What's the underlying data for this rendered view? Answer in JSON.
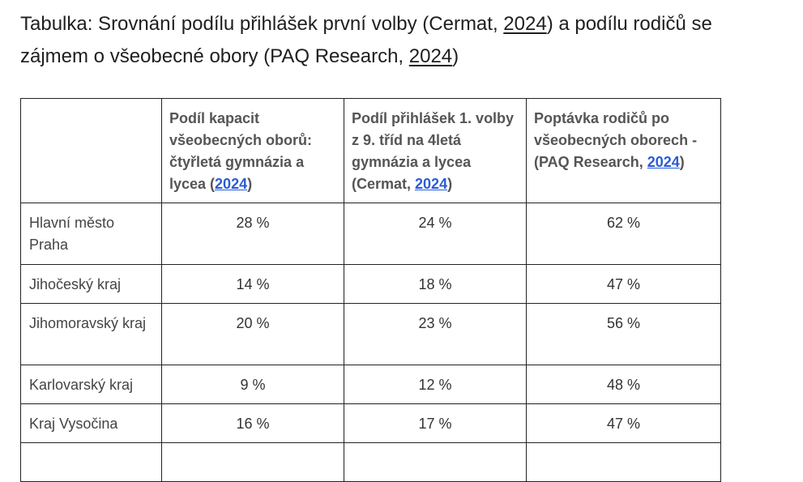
{
  "title": {
    "line1_before": "Tabulka: Srovnání podílu přihlášek první volby (Cermat, ",
    "line1_link": "2024",
    "line1_after": ") a podílu rodičů se",
    "line2_before": "zájmem o všeobecné obory (PAQ Research, ",
    "line2_link": "2024",
    "line2_after": ")"
  },
  "table": {
    "headers": [
      {
        "text": "",
        "link": "",
        "after": ""
      },
      {
        "text": "Podíl kapacit všeobecných oborů: čtyřletá gymnázia a lycea (",
        "link": "2024",
        "after": ")"
      },
      {
        "text": "Podíl přihlášek 1. volby z 9. tříd na 4letá gymnázia a lycea (Cermat, ",
        "link": "2024",
        "after": ")"
      },
      {
        "text": "Poptávka rodičů po všeobecných oborech - (PAQ Research, ",
        "link": "2024",
        "after": ")"
      }
    ],
    "rows": [
      {
        "region": "Hlavní město Praha",
        "capacity": "28 %",
        "applications": "24 %",
        "demand": "62 %"
      },
      {
        "region": "Jihočeský kraj",
        "capacity": "14 %",
        "applications": "18 %",
        "demand": "47 %"
      },
      {
        "region": "Jihomoravský kraj",
        "capacity": "20 %",
        "applications": "23 %",
        "demand": "56 %"
      },
      {
        "region": "Karlovarský kraj",
        "capacity": "9 %",
        "applications": "12 %",
        "demand": "48 %"
      },
      {
        "region": "Kraj Vysočina",
        "capacity": "16 %",
        "applications": "17 %",
        "demand": "47 %"
      }
    ]
  },
  "colors": {
    "text": "#1f1f1f",
    "header_text": "#555555",
    "link": "#2a5bd7",
    "border": "#222222"
  }
}
